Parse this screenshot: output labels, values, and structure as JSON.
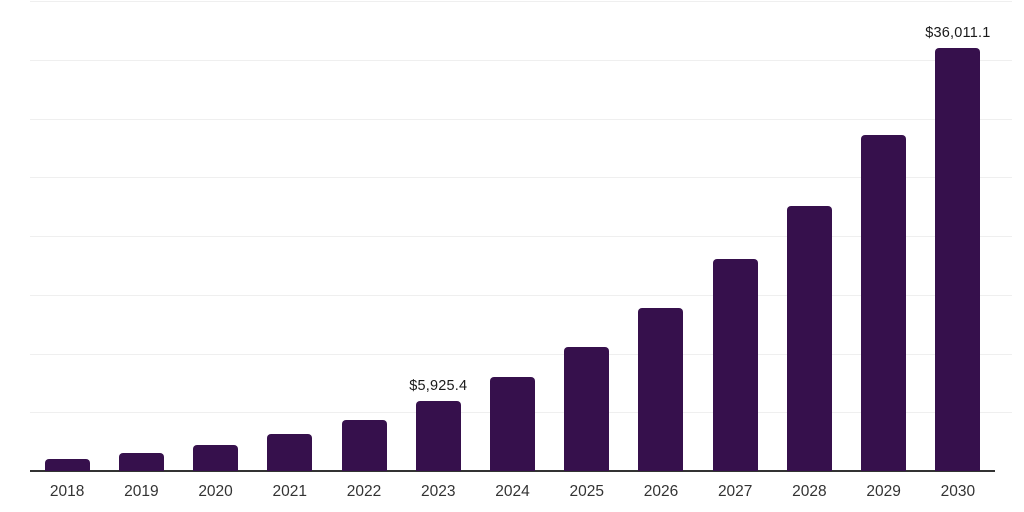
{
  "chart_data": {
    "type": "bar",
    "categories": [
      "2018",
      "2019",
      "2020",
      "2021",
      "2022",
      "2023",
      "2024",
      "2025",
      "2026",
      "2027",
      "2028",
      "2029",
      "2030"
    ],
    "values": [
      1020,
      1530,
      2210,
      3140,
      4370,
      5925.4,
      7980,
      10575,
      13890,
      18005,
      22590,
      28620,
      36011.1
    ],
    "data_labels": {
      "2023": "$5,925.4",
      "2030": "$36,011.1"
    },
    "title": "",
    "xlabel": "",
    "ylabel": "",
    "ylim": [
      0,
      40000
    ],
    "gridline_interval": 5000,
    "grid": true,
    "legend": "none",
    "colors": {
      "bar": "#36104C",
      "axis": "#333333",
      "gridline": "#efefef",
      "tick_label": "#333333",
      "data_label": "#1a1a1a",
      "background": "#ffffff"
    }
  }
}
